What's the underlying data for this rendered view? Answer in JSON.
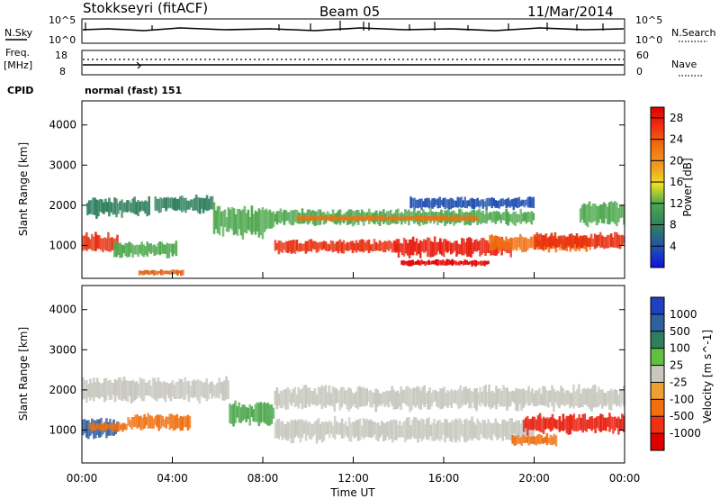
{
  "header": {
    "station": "Stokkseyri (fitACF)",
    "beam": "Beam 05",
    "date": "11/Mar/2014"
  },
  "strips": {
    "nsky_label": "N.Sky",
    "nsky_max": "10^5",
    "nsky_min": "10^0",
    "nsearch_label": "N.Search",
    "nsearch_max": "10^5",
    "nsearch_min": "10^0",
    "freq_label": "Freq.",
    "freq_unit": "[MHz]",
    "freq_max": "18",
    "freq_min": "8",
    "nave_label": "Nave",
    "nave_max": "60",
    "nave_min": "0",
    "cpid_label": "CPID",
    "cpid_value": "normal (fast) 151"
  },
  "chart_data": [
    {
      "type": "heatmap",
      "name": "power",
      "ylabel": "Slant Range [km]",
      "yticks": [
        "1000",
        "2000",
        "3000",
        "4000"
      ],
      "ylim": [
        180,
        4600
      ],
      "xlim_hours": [
        0,
        24
      ],
      "colorbar": {
        "label": "Power [dB]",
        "ticks": [
          "4",
          "8",
          "12",
          "16",
          "20",
          "24",
          "28"
        ],
        "colors": [
          "#1010e0",
          "#2050b0",
          "#2f7f5f",
          "#4fa84f",
          "#7fc040",
          "#f0e020",
          "#f0a020",
          "#f07010",
          "#f03010",
          "#e00000"
        ]
      },
      "bands": [
        {
          "start": 0.0,
          "end": 1.6,
          "range": [
            800,
            1300
          ],
          "color": "#e83010"
        },
        {
          "start": 0.2,
          "end": 3.0,
          "range": [
            1700,
            2200
          ],
          "color": "#2f7f5f"
        },
        {
          "start": 1.4,
          "end": 4.2,
          "range": [
            700,
            1100
          ],
          "color": "#4fa84f"
        },
        {
          "start": 2.5,
          "end": 4.5,
          "range": [
            250,
            400
          ],
          "color": "#e06010"
        },
        {
          "start": 3.2,
          "end": 5.8,
          "range": [
            1800,
            2250
          ],
          "color": "#2f7f5f"
        },
        {
          "start": 5.8,
          "end": 8.5,
          "range": [
            1200,
            2000
          ],
          "color": "#4fa84f"
        },
        {
          "start": 8.5,
          "end": 14.0,
          "range": [
            800,
            1150
          ],
          "color": "#e83010"
        },
        {
          "start": 8.5,
          "end": 20.0,
          "range": [
            1500,
            1900
          ],
          "color": "#4fa84f"
        },
        {
          "start": 9.5,
          "end": 17.5,
          "range": [
            1600,
            1750
          ],
          "color": "#f07010"
        },
        {
          "start": 13.8,
          "end": 19.0,
          "range": [
            700,
            1200
          ],
          "color": "#e82010"
        },
        {
          "start": 14.1,
          "end": 18.0,
          "range": [
            480,
            650
          ],
          "color": "#e00000"
        },
        {
          "start": 18.0,
          "end": 22.5,
          "range": [
            850,
            1250
          ],
          "color": "#f07010"
        },
        {
          "start": 20.0,
          "end": 24.0,
          "range": [
            900,
            1300
          ],
          "color": "#e83010"
        },
        {
          "start": 22.0,
          "end": 24.0,
          "range": [
            1500,
            2100
          ],
          "color": "#4fa84f"
        },
        {
          "start": 14.5,
          "end": 20.0,
          "range": [
            1900,
            2200
          ],
          "color": "#2050b0"
        }
      ]
    },
    {
      "type": "heatmap",
      "name": "velocity",
      "ylabel": "Slant Range [km]",
      "yticks": [
        "1000",
        "2000",
        "3000",
        "4000"
      ],
      "ylim": [
        180,
        4600
      ],
      "xlim_hours": [
        0,
        24
      ],
      "xticks": [
        "00:00",
        "04:00",
        "08:00",
        "12:00",
        "16:00",
        "20:00",
        "00:00"
      ],
      "xlabel": "Time UT",
      "colorbar": {
        "label": "Velocity [m s^-1]",
        "ticks": [
          "1000",
          "500",
          "100",
          "25",
          "-25",
          "-100",
          "-500",
          "-1000"
        ],
        "colors": [
          "#2040c0",
          "#3060a0",
          "#2f7f5f",
          "#60c040",
          "#c8c8c0",
          "#f0a030",
          "#f07010",
          "#f03010",
          "#e00000"
        ]
      },
      "bands": [
        {
          "start": 0.0,
          "end": 1.6,
          "range": [
            800,
            1300
          ],
          "color": "#3060a0"
        },
        {
          "start": 0.3,
          "end": 2.0,
          "range": [
            950,
            1200
          ],
          "color": "#f07010"
        },
        {
          "start": 0.0,
          "end": 6.5,
          "range": [
            1700,
            2300
          ],
          "color": "#c8c8c0"
        },
        {
          "start": 2.0,
          "end": 4.8,
          "range": [
            1000,
            1400
          ],
          "color": "#f07010"
        },
        {
          "start": 6.5,
          "end": 8.5,
          "range": [
            1100,
            1700
          ],
          "color": "#4fa84f"
        },
        {
          "start": 8.5,
          "end": 24.0,
          "range": [
            1500,
            2100
          ],
          "color": "#c8c8c0"
        },
        {
          "start": 8.5,
          "end": 20.0,
          "range": [
            700,
            1300
          ],
          "color": "#c8c8c0"
        },
        {
          "start": 19.5,
          "end": 24.0,
          "range": [
            900,
            1400
          ],
          "color": "#e82010"
        },
        {
          "start": 19.0,
          "end": 21.0,
          "range": [
            600,
            900
          ],
          "color": "#f07010"
        }
      ]
    }
  ]
}
